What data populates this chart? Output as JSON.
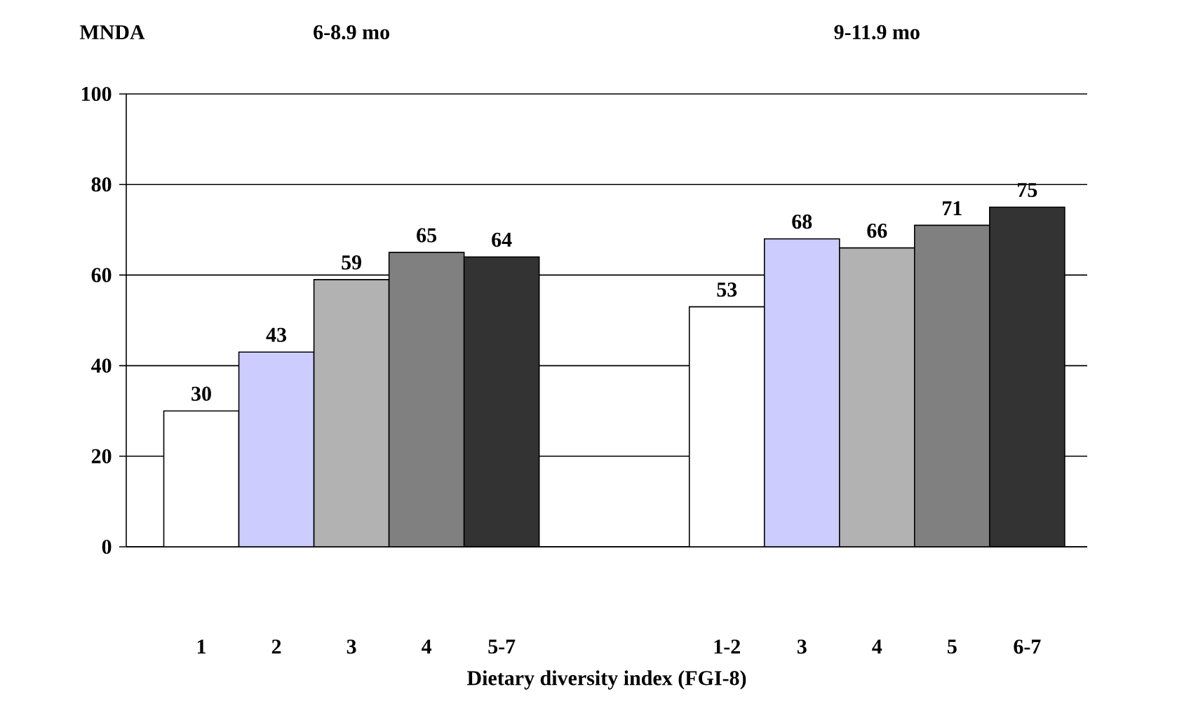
{
  "chart_data": {
    "type": "bar",
    "ylabel": "MNDA",
    "xlabel": "Dietary diversity index (FGI-8)",
    "annotations": [
      "6-8.9 mo",
      "9-11.9 mo"
    ],
    "categories": [
      "1",
      "2",
      "3",
      "4",
      "5-7",
      null,
      null,
      "1-2",
      "3",
      "4",
      "5",
      "6-7"
    ],
    "values": [
      30,
      43,
      59,
      65,
      64,
      null,
      null,
      53,
      68,
      66,
      71,
      75
    ],
    "colors": [
      "#ffffff",
      "#ccccff",
      "#b2b2b2",
      "#808080",
      "#333333",
      null,
      null,
      "#ffffff",
      "#ccccff",
      "#b2b2b2",
      "#808080",
      "#333333"
    ],
    "ylim": [
      0,
      100
    ],
    "yticks": [
      0,
      20,
      40,
      60,
      80,
      100
    ],
    "grid": "y",
    "data_labels": true
  }
}
